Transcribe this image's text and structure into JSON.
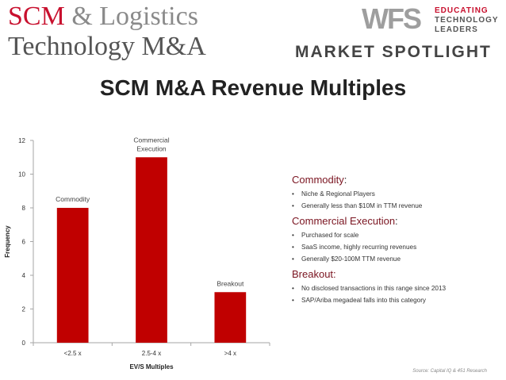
{
  "header": {
    "title_part1": "SCM",
    "title_amp": "&",
    "title_part2": "Logistics",
    "title_line2": "Technology M&A",
    "logo_mark": "WFS",
    "logo_words": [
      "EDUCATING",
      "TECHNOLOGY",
      "LEADERS"
    ],
    "spotlight": "MARKET SPOTLIGHT"
  },
  "chart_data": {
    "type": "bar",
    "title": "SCM M&A Revenue Multiples",
    "categories": [
      "<2.5 x",
      "2.5-4 x",
      ">4 x"
    ],
    "values": [
      8,
      11,
      3
    ],
    "data_labels": [
      [
        "Commodity"
      ],
      [
        "Commercial",
        "Execution"
      ],
      [
        "Breakout"
      ]
    ],
    "xlabel": "EV/S Multiples",
    "ylabel": "Frequency",
    "ylim": [
      0,
      12
    ],
    "yticks": [
      0,
      2,
      4,
      6,
      8,
      10,
      12
    ],
    "bar_color": "#c00000",
    "grid": false,
    "legend": "none"
  },
  "sections": [
    {
      "heading": "Commodity",
      "colon": ":",
      "bullets": [
        "Niche & Regional Players",
        "Generally less than $10M in TTM revenue"
      ]
    },
    {
      "heading": "Commercial Execution",
      "colon": ":",
      "bullets": [
        "Purchased for scale",
        "SaaS income, highly recurring revenues",
        "Generally $20-100M TTM revenue"
      ]
    },
    {
      "heading": "Breakout:",
      "colon": "",
      "bullets": [
        "No disclosed transactions in this range since 2013",
        "SAP/Ariba megadeal falls into this category"
      ]
    }
  ],
  "source": "Source: Capital IQ & 451 Research",
  "colors": {
    "accent_red": "#c8102e",
    "bar": "#c00000",
    "section_head": "#7a1420"
  }
}
